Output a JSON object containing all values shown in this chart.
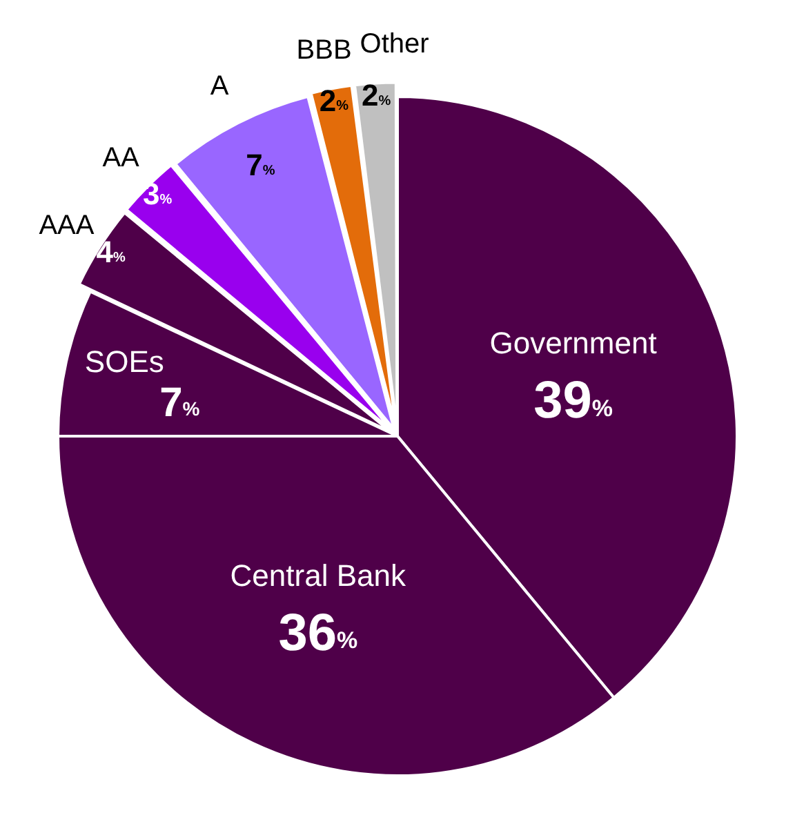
{
  "chart_data": {
    "type": "pie",
    "categories": [
      "Government",
      "Central Bank",
      "SOEs",
      "AAA",
      "AA",
      "A",
      "BBB",
      "Other"
    ],
    "values": [
      39,
      36,
      7,
      4,
      3,
      7,
      2,
      2
    ],
    "value_labels": [
      "39%",
      "36%",
      "7%",
      "4%",
      "3%",
      "7%",
      "2%",
      "2%"
    ],
    "colors": [
      "#4f0049",
      "#4f0049",
      "#4f0049",
      "#4f0049",
      "#9900ee",
      "#9966ff",
      "#e36c0a",
      "#c0c0c0"
    ],
    "legend": false
  }
}
